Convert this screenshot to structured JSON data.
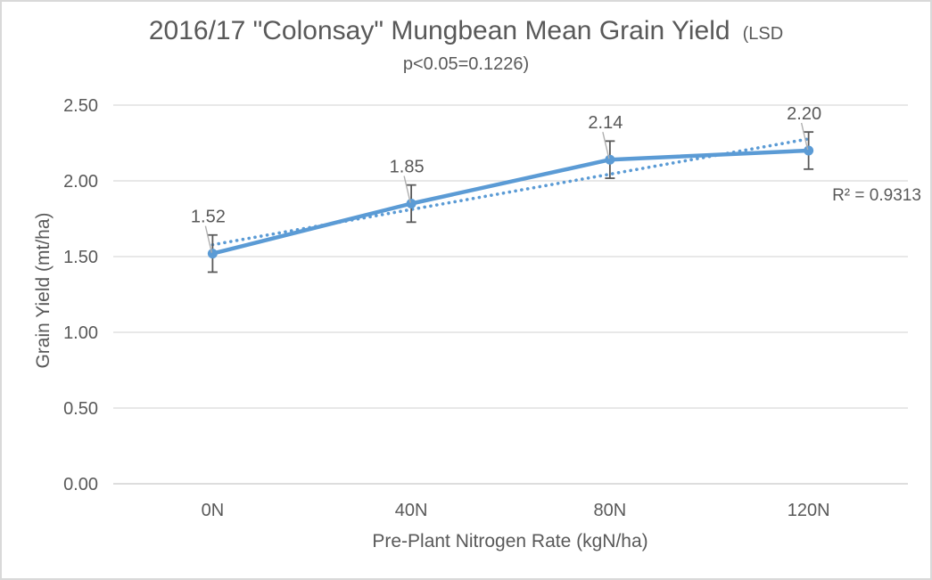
{
  "chart_data": {
    "type": "line",
    "title": "2016/17 \"Colonsay\" Mungbean Mean Grain Yield",
    "title_suffix": "(LSD",
    "subtitle": "p<0.05=0.1226)",
    "xlabel": "Pre-Plant Nitrogen Rate (kgN/ha)",
    "ylabel": "Grain Yield (mt/ha)",
    "categories": [
      "0N",
      "40N",
      "80N",
      "120N"
    ],
    "values": [
      1.52,
      1.85,
      2.14,
      2.2
    ],
    "data_labels": [
      "1.52",
      "1.85",
      "2.14",
      "2.20"
    ],
    "error_bar": 0.1226,
    "ylim": [
      0,
      2.5
    ],
    "ytick_step": 0.5,
    "ytick_labels": [
      "0.00",
      "0.50",
      "1.00",
      "1.50",
      "2.00",
      "2.50"
    ],
    "grid": "horizontal",
    "legend": "none",
    "trendline": {
      "style": "dotted",
      "slope": 0.233,
      "intercept": 1.578,
      "r2": 0.9313
    },
    "r2_label": "R² = 0.9313",
    "colors": {
      "series": "#5B9BD5",
      "trendline": "#5B9BD5",
      "gridline": "#D9D9D9",
      "axis_line": "#D2D2D2",
      "text": "#595959",
      "error_bar": "#595959",
      "leader": "#AFAFAF"
    }
  }
}
